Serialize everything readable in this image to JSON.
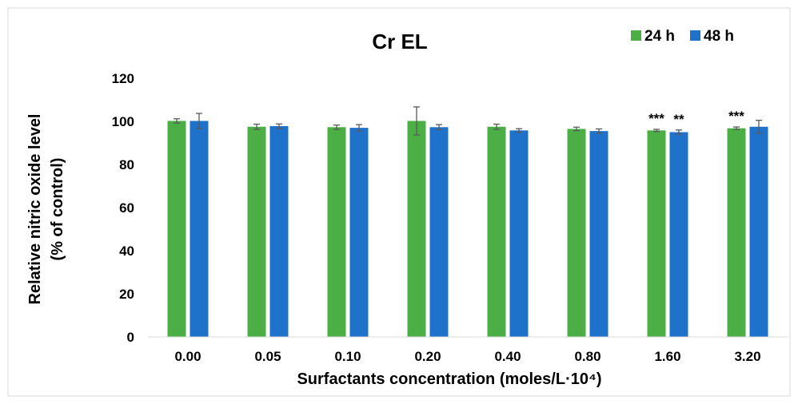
{
  "chart_data": {
    "type": "bar",
    "title": "Cr EL",
    "xlabel": "Surfactants concentration (moles/L·10⁴)",
    "ylabel_line1": "Relative nitric oxide level",
    "ylabel_line2": "(% of control)",
    "categories": [
      "0.00",
      "0.05",
      "0.10",
      "0.20",
      "0.40",
      "0.80",
      "1.60",
      "3.20"
    ],
    "ylim": [
      0,
      120
    ],
    "yticks": [
      "0",
      "20",
      "40",
      "60",
      "80",
      "100",
      "120"
    ],
    "grid": false,
    "legend_position": "top-right",
    "series": [
      {
        "name": "24 h",
        "color": "#4caf45",
        "values": [
          100.2,
          97.5,
          97.3,
          100.2,
          97.5,
          96.5,
          95.8,
          96.8
        ],
        "errors": [
          1.0,
          1.2,
          1.0,
          6.5,
          1.2,
          0.8,
          0.5,
          0.6
        ],
        "annotations": [
          "",
          "",
          "",
          "",
          "",
          "",
          "***",
          "***"
        ]
      },
      {
        "name": "48 h",
        "color": "#1f72c9",
        "values": [
          100.2,
          97.8,
          97.0,
          97.3,
          95.8,
          95.5,
          95.0,
          97.5
        ],
        "errors": [
          3.5,
          1.0,
          1.5,
          1.2,
          0.8,
          1.0,
          1.0,
          3.0
        ],
        "annotations": [
          "",
          "",
          "",
          "",
          "",
          "",
          "**",
          ""
        ]
      }
    ]
  }
}
